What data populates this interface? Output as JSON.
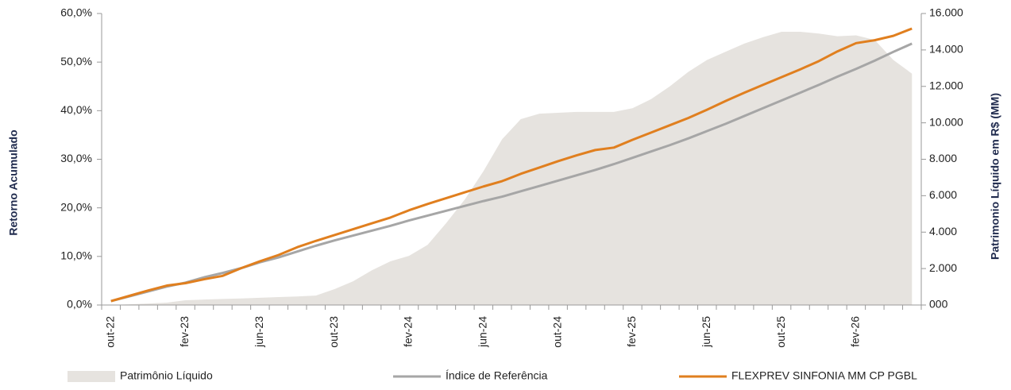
{
  "chart_data": {
    "type": "line",
    "y_label": "Retorno Acumulado",
    "y2_label": "Patrimonio Líquido em R$ (MM)",
    "categories": [
      "out-22",
      null,
      null,
      null,
      "fev-23",
      null,
      null,
      null,
      "jun-23",
      null,
      null,
      null,
      "out-23",
      null,
      null,
      null,
      "fev-24",
      null,
      null,
      null,
      "jun-24",
      null,
      null,
      null,
      "out-24",
      null,
      null,
      null,
      "fev-25",
      null,
      null,
      null,
      "jun-25",
      null,
      null,
      null,
      "out-25",
      null,
      null,
      null,
      "fev-26",
      null,
      null,
      null
    ],
    "series": [
      {
        "name": "Patrimônio Líquido",
        "type": "area",
        "axis": "y2",
        "color": "#e6e3df",
        "values": [
          0,
          40,
          80,
          130,
          260,
          300,
          330,
          360,
          400,
          435,
          470,
          520,
          870,
          1300,
          1900,
          2400,
          2700,
          3300,
          4500,
          5800,
          7350,
          9100,
          10200,
          10500,
          10550,
          10600,
          10600,
          10600,
          10800,
          11300,
          12000,
          12800,
          13450,
          13900,
          14350,
          14700,
          15000,
          15000,
          14900,
          14750,
          14800,
          14550,
          13450,
          12700
        ]
      },
      {
        "name": "Índice de Referência",
        "type": "line",
        "color": "#a6a6a6",
        "values": [
          0.8,
          1.8,
          2.8,
          3.8,
          4.6,
          5.7,
          6.6,
          7.6,
          8.8,
          9.8,
          11.0,
          12.2,
          13.3,
          14.3,
          15.3,
          16.3,
          17.4,
          18.4,
          19.4,
          20.4,
          21.4,
          22.3,
          23.4,
          24.5,
          25.6,
          26.7,
          27.8,
          29.0,
          30.3,
          31.6,
          32.9,
          34.3,
          35.8,
          37.3,
          38.9,
          40.5,
          42.1,
          43.7,
          45.3,
          47.0,
          48.6,
          50.3,
          52.1,
          53.8
        ]
      },
      {
        "name": "FLEXPREV SINFONIA MM CP PGBL",
        "type": "line",
        "color": "#e07f1f",
        "values": [
          0.8,
          1.9,
          3.0,
          4.0,
          4.5,
          5.3,
          6.0,
          7.6,
          9.0,
          10.3,
          11.9,
          13.2,
          14.4,
          15.6,
          16.8,
          18.0,
          19.5,
          20.8,
          22.0,
          23.2,
          24.4,
          25.5,
          27.0,
          28.3,
          29.6,
          30.8,
          31.9,
          32.4,
          34.0,
          35.5,
          37.0,
          38.5,
          40.2,
          42.0,
          43.7,
          45.3,
          46.9,
          48.5,
          50.2,
          52.2,
          53.9,
          54.5,
          55.4,
          56.9
        ]
      }
    ],
    "ylim": [
      0,
      60
    ],
    "yticks": [
      {
        "value": 0,
        "label": "0,0%"
      },
      {
        "value": 10,
        "label": "10,0%"
      },
      {
        "value": 20,
        "label": "20,0%"
      },
      {
        "value": 30,
        "label": "30,0%"
      },
      {
        "value": 40,
        "label": "40,0%"
      },
      {
        "value": 50,
        "label": "50,0%"
      },
      {
        "value": 60,
        "label": "60,0%"
      }
    ],
    "y2lim": [
      0,
      16000
    ],
    "y2ticks": [
      {
        "value": 0,
        "label": "000"
      },
      {
        "value": 2000,
        "label": "2.000"
      },
      {
        "value": 4000,
        "label": "4.000"
      },
      {
        "value": 6000,
        "label": "6.000"
      },
      {
        "value": 8000,
        "label": "8.000"
      },
      {
        "value": 10000,
        "label": "10.000"
      },
      {
        "value": 12000,
        "label": "12.000"
      },
      {
        "value": 14000,
        "label": "14.000"
      },
      {
        "value": 16000,
        "label": "16.000"
      }
    ],
    "grid": false
  }
}
